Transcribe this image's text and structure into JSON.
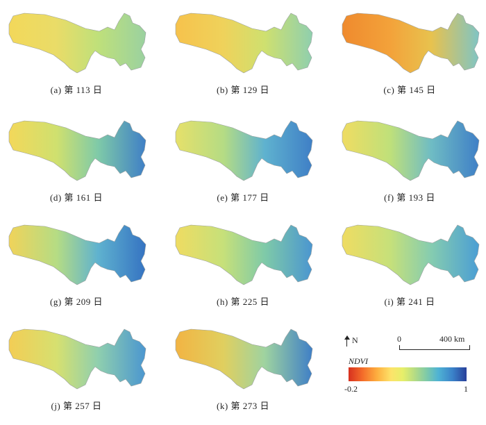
{
  "panels": [
    {
      "caption": "(a) 第 113 日",
      "colors": [
        "#f3d85a",
        "#e9dc68",
        "#bfe07a",
        "#9ad1a0"
      ]
    },
    {
      "caption": "(b) 第 129 日",
      "colors": [
        "#f6c24c",
        "#efd25b",
        "#cfe06f",
        "#8fcfae"
      ]
    },
    {
      "caption": "(c) 第 145 日",
      "colors": [
        "#ef8a2e",
        "#f3a23a",
        "#e8c24e",
        "#7fc4c4"
      ]
    },
    {
      "caption": "(d) 第 161 日",
      "colors": [
        "#f3d85a",
        "#cfe06f",
        "#7fcaa8",
        "#3f7fc6"
      ]
    },
    {
      "caption": "(e) 第 177 日",
      "colors": [
        "#e6e06a",
        "#b5dc84",
        "#5fb2cf",
        "#3f7fc6"
      ]
    },
    {
      "caption": "(f) 第 193 日",
      "colors": [
        "#efdc62",
        "#bfe07a",
        "#6fbcc4",
        "#3f7fc6"
      ]
    },
    {
      "caption": "(g) 第 209 日",
      "colors": [
        "#f0d35a",
        "#b5dc84",
        "#5fb2cf",
        "#3573c2"
      ]
    },
    {
      "caption": "(h) 第 225 日",
      "colors": [
        "#efdc62",
        "#c6e07a",
        "#7fcaa8",
        "#4b96d0"
      ]
    },
    {
      "caption": "(i) 第 241 日",
      "colors": [
        "#efdc62",
        "#c6e07a",
        "#85ccb0",
        "#4b9ed4"
      ]
    },
    {
      "caption": "(j) 第 257 日",
      "colors": [
        "#f3cd55",
        "#d6e070",
        "#8fcfae",
        "#4b96d0"
      ]
    },
    {
      "caption": "(k) 第 273 日",
      "colors": [
        "#f2b443",
        "#e0cf5f",
        "#9fd3a0",
        "#3f7fc6"
      ]
    }
  ],
  "legend": {
    "north": "N",
    "scale_start": "0",
    "scale_end": "400 km",
    "index_label": "NDVI",
    "min_label": "-0.2",
    "max_label": "1",
    "colormap": [
      "#d7301f",
      "#f46d2a",
      "#fdae3f",
      "#fde36a",
      "#e6ef6a",
      "#b5dc84",
      "#7fcaa8",
      "#4fb3d4",
      "#3b83c9",
      "#283f9a"
    ]
  }
}
